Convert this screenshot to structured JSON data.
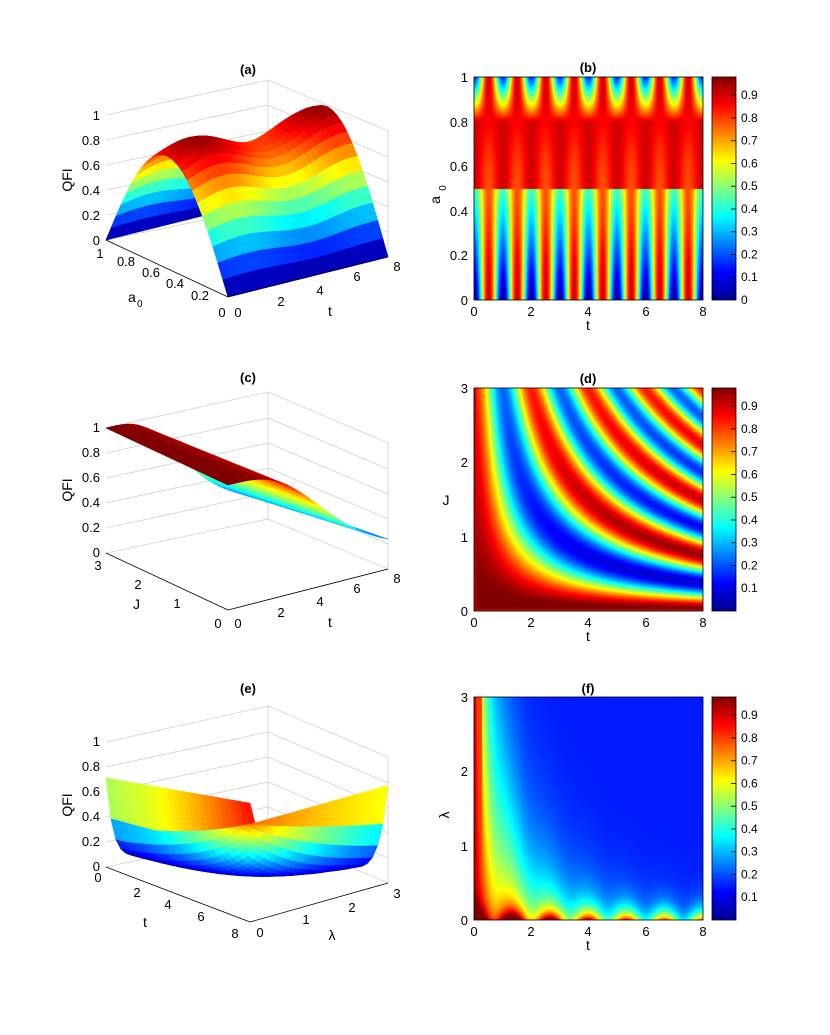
{
  "colors": {
    "colormap": "jet",
    "background": "#ffffff"
  },
  "colorbar": {
    "ticks_b": [
      "0",
      "0.1",
      "0.2",
      "0.3",
      "0.4",
      "0.5",
      "0.6",
      "0.7",
      "0.8",
      "0.9"
    ],
    "ticks_d": [
      "0.1",
      "0.2",
      "0.3",
      "0.4",
      "0.5",
      "0.6",
      "0.7",
      "0.8",
      "0.9"
    ],
    "ticks_f": [
      "0.1",
      "0.2",
      "0.3",
      "0.4",
      "0.5",
      "0.6",
      "0.7",
      "0.8",
      "0.9"
    ]
  },
  "chart_data": [
    {
      "id": "a",
      "type": "surface",
      "title": "(a)",
      "zlabel": "QFI",
      "ylabel": "a",
      "ylabel_sub": "0",
      "xlabel": "t",
      "z_ticks": [
        "0",
        "0.2",
        "0.4",
        "0.6",
        "0.8",
        "1"
      ],
      "y_ticks": [
        "0",
        "0.2",
        "0.4",
        "0.6",
        "0.8",
        "1"
      ],
      "x_ticks": [
        "0",
        "2",
        "4",
        "6",
        "8"
      ],
      "xlim": [
        0,
        8
      ],
      "ylim": [
        0,
        1
      ],
      "zlim": [
        0,
        1
      ],
      "profile_a0": [
        0,
        0.3,
        0.6,
        0.85,
        0.98,
        1.0,
        0.98,
        0.85,
        0.6,
        0.3,
        0.02
      ],
      "t_max_values": [
        0.88,
        0.92,
        0.95,
        0.98,
        0.95
      ]
    },
    {
      "id": "b",
      "type": "heatmap",
      "title": "(b)",
      "xlabel": "t",
      "ylabel": "a",
      "ylabel_sub": "0",
      "x_ticks": [
        "0",
        "2",
        "4",
        "6",
        "8"
      ],
      "y_ticks": [
        "0",
        "0.2",
        "0.4",
        "0.6",
        "0.8",
        "1"
      ],
      "xlim": [
        0,
        8
      ],
      "ylim": [
        0,
        1
      ],
      "zlim": [
        0,
        0.98
      ]
    },
    {
      "id": "c",
      "type": "surface",
      "title": "(c)",
      "zlabel": "QFI",
      "ylabel": "J",
      "xlabel": "t",
      "z_ticks": [
        "0",
        "0.2",
        "0.4",
        "0.6",
        "0.8",
        "1"
      ],
      "y_ticks": [
        "0",
        "1",
        "2",
        "3"
      ],
      "x_ticks": [
        "0",
        "2",
        "4",
        "6",
        "8"
      ],
      "xlim": [
        0,
        8
      ],
      "ylim": [
        0,
        3
      ],
      "zlim": [
        0,
        1
      ]
    },
    {
      "id": "d",
      "type": "heatmap",
      "title": "(d)",
      "xlabel": "t",
      "ylabel": "J",
      "x_ticks": [
        "0",
        "2",
        "4",
        "6",
        "8"
      ],
      "y_ticks": [
        "0",
        "1",
        "2",
        "3"
      ],
      "xlim": [
        0,
        8
      ],
      "ylim": [
        0,
        3
      ],
      "zlim": [
        0,
        0.98
      ]
    },
    {
      "id": "e",
      "type": "surface",
      "title": "(e)",
      "zlabel": "QFI",
      "ylabel": "t",
      "xlabel": "λ",
      "z_ticks": [
        "0",
        "0.2",
        "0.4",
        "0.6",
        "0.8",
        "1"
      ],
      "y_ticks": [
        "0",
        "2",
        "4",
        "6",
        "8"
      ],
      "x_ticks": [
        "0",
        "1",
        "2",
        "3"
      ],
      "xlim": [
        0,
        3
      ],
      "ylim": [
        0,
        8
      ],
      "zlim": [
        0,
        1
      ]
    },
    {
      "id": "f",
      "type": "heatmap",
      "title": "(f)",
      "xlabel": "t",
      "ylabel": "λ",
      "x_ticks": [
        "0",
        "2",
        "4",
        "6",
        "8"
      ],
      "y_ticks": [
        "0",
        "1",
        "2",
        "3"
      ],
      "xlim": [
        0,
        8
      ],
      "ylim": [
        0,
        3
      ],
      "zlim": [
        0,
        0.98
      ]
    }
  ]
}
